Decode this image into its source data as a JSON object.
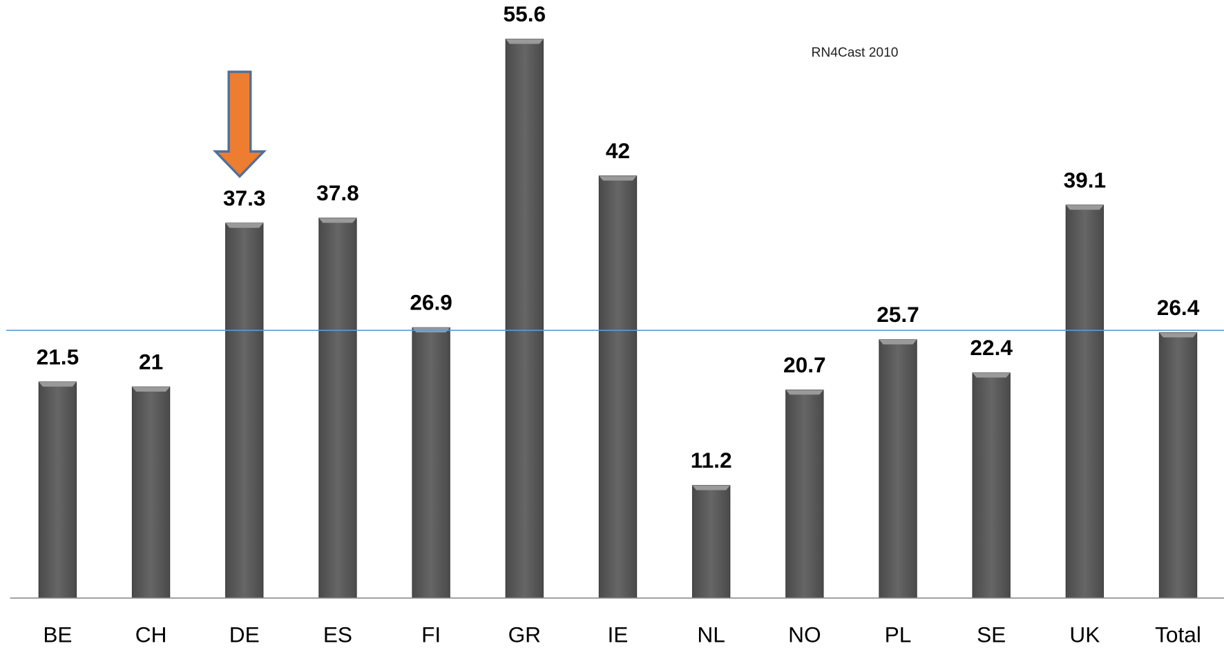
{
  "chart_data": {
    "type": "bar",
    "annotation": "RN4Cast 2010",
    "categories": [
      "BE",
      "CH",
      "DE",
      "ES",
      "FI",
      "GR",
      "IE",
      "NL",
      "NO",
      "PL",
      "SE",
      "UK",
      "Total"
    ],
    "values": [
      21.5,
      21,
      37.3,
      37.8,
      26.9,
      55.6,
      42,
      11.2,
      20.7,
      25.7,
      22.4,
      39.1,
      26.4
    ],
    "color": "#5e5e5e",
    "ylim": [
      0,
      59.5
    ],
    "reference_line": true,
    "reference_color": "#5b9bd5",
    "grid": false
  }
}
